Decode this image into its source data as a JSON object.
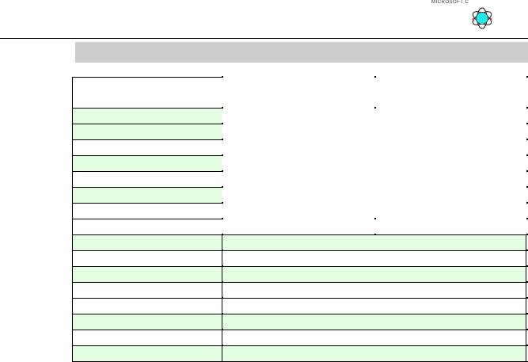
{
  "header": {
    "brand_text": "MICROSOFT C",
    "logo_icon": "atom-icon"
  },
  "colors": {
    "header_bar": "#cccccc",
    "row_highlight": "#e3fde0",
    "rule": "#000000"
  },
  "table": {
    "rows": [
      {
        "tall": true,
        "green": false,
        "full": false
      },
      {
        "green": true,
        "full": false
      },
      {
        "green": true,
        "full": false
      },
      {
        "green": false,
        "full": false
      },
      {
        "green": true,
        "full": false
      },
      {
        "green": false,
        "full": false
      },
      {
        "green": true,
        "full": false
      },
      {
        "green": false,
        "full": false
      },
      {
        "green": false,
        "full": false
      },
      {
        "green": true,
        "full": true
      },
      {
        "green": false,
        "full": true
      },
      {
        "green": true,
        "full": true
      },
      {
        "green": false,
        "full": true
      },
      {
        "green": false,
        "full": true
      },
      {
        "green": true,
        "full": true
      },
      {
        "green": false,
        "full": true
      },
      {
        "green": true,
        "full": true
      }
    ]
  }
}
